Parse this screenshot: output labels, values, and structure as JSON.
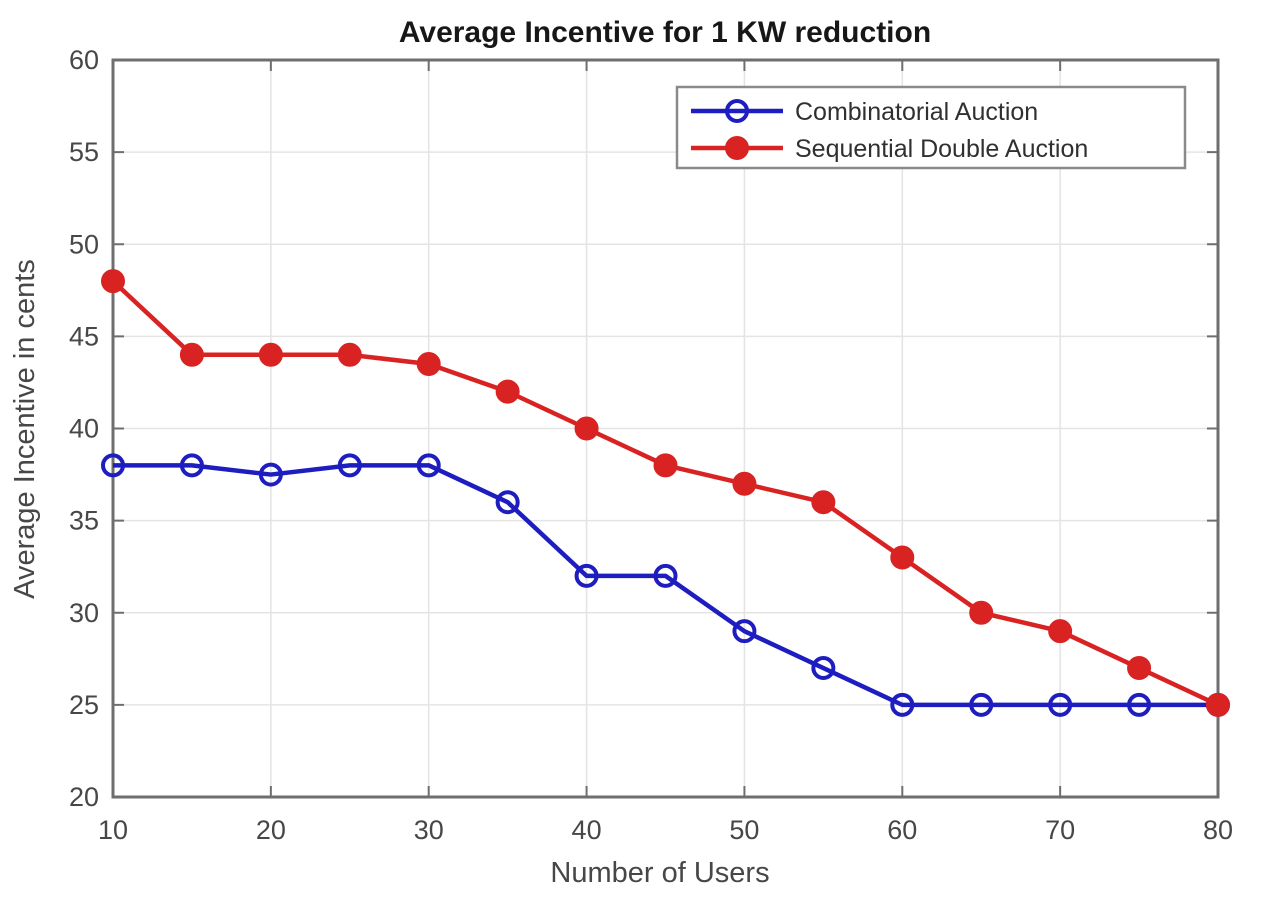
{
  "chart_data": {
    "type": "line",
    "title": "Average Incentive for 1 KW reduction",
    "xlabel": "Number of Users",
    "ylabel": "Average Incentive in cents",
    "x": [
      10,
      15,
      20,
      25,
      30,
      35,
      40,
      45,
      50,
      55,
      60,
      65,
      70,
      75,
      80
    ],
    "series": [
      {
        "name": "Combinatorial Auction",
        "color": "#1e1ec0",
        "marker": "open-circle",
        "values": [
          38,
          38,
          37.5,
          38,
          38,
          36,
          32,
          32,
          29,
          27,
          25,
          25,
          25,
          25,
          25
        ]
      },
      {
        "name": "Sequential Double Auction",
        "color": "#d92222",
        "marker": "filled-circle",
        "values": [
          48,
          44,
          44,
          44,
          43.5,
          42,
          40,
          38,
          37,
          36,
          33,
          30,
          29,
          27,
          25
        ]
      }
    ],
    "xlim": [
      10,
      80
    ],
    "ylim": [
      20,
      60
    ],
    "xticks": [
      10,
      20,
      30,
      40,
      50,
      60,
      70,
      80
    ],
    "yticks": [
      20,
      25,
      30,
      35,
      40,
      45,
      50,
      55,
      60
    ],
    "grid": true,
    "legend_position": "top-right"
  }
}
